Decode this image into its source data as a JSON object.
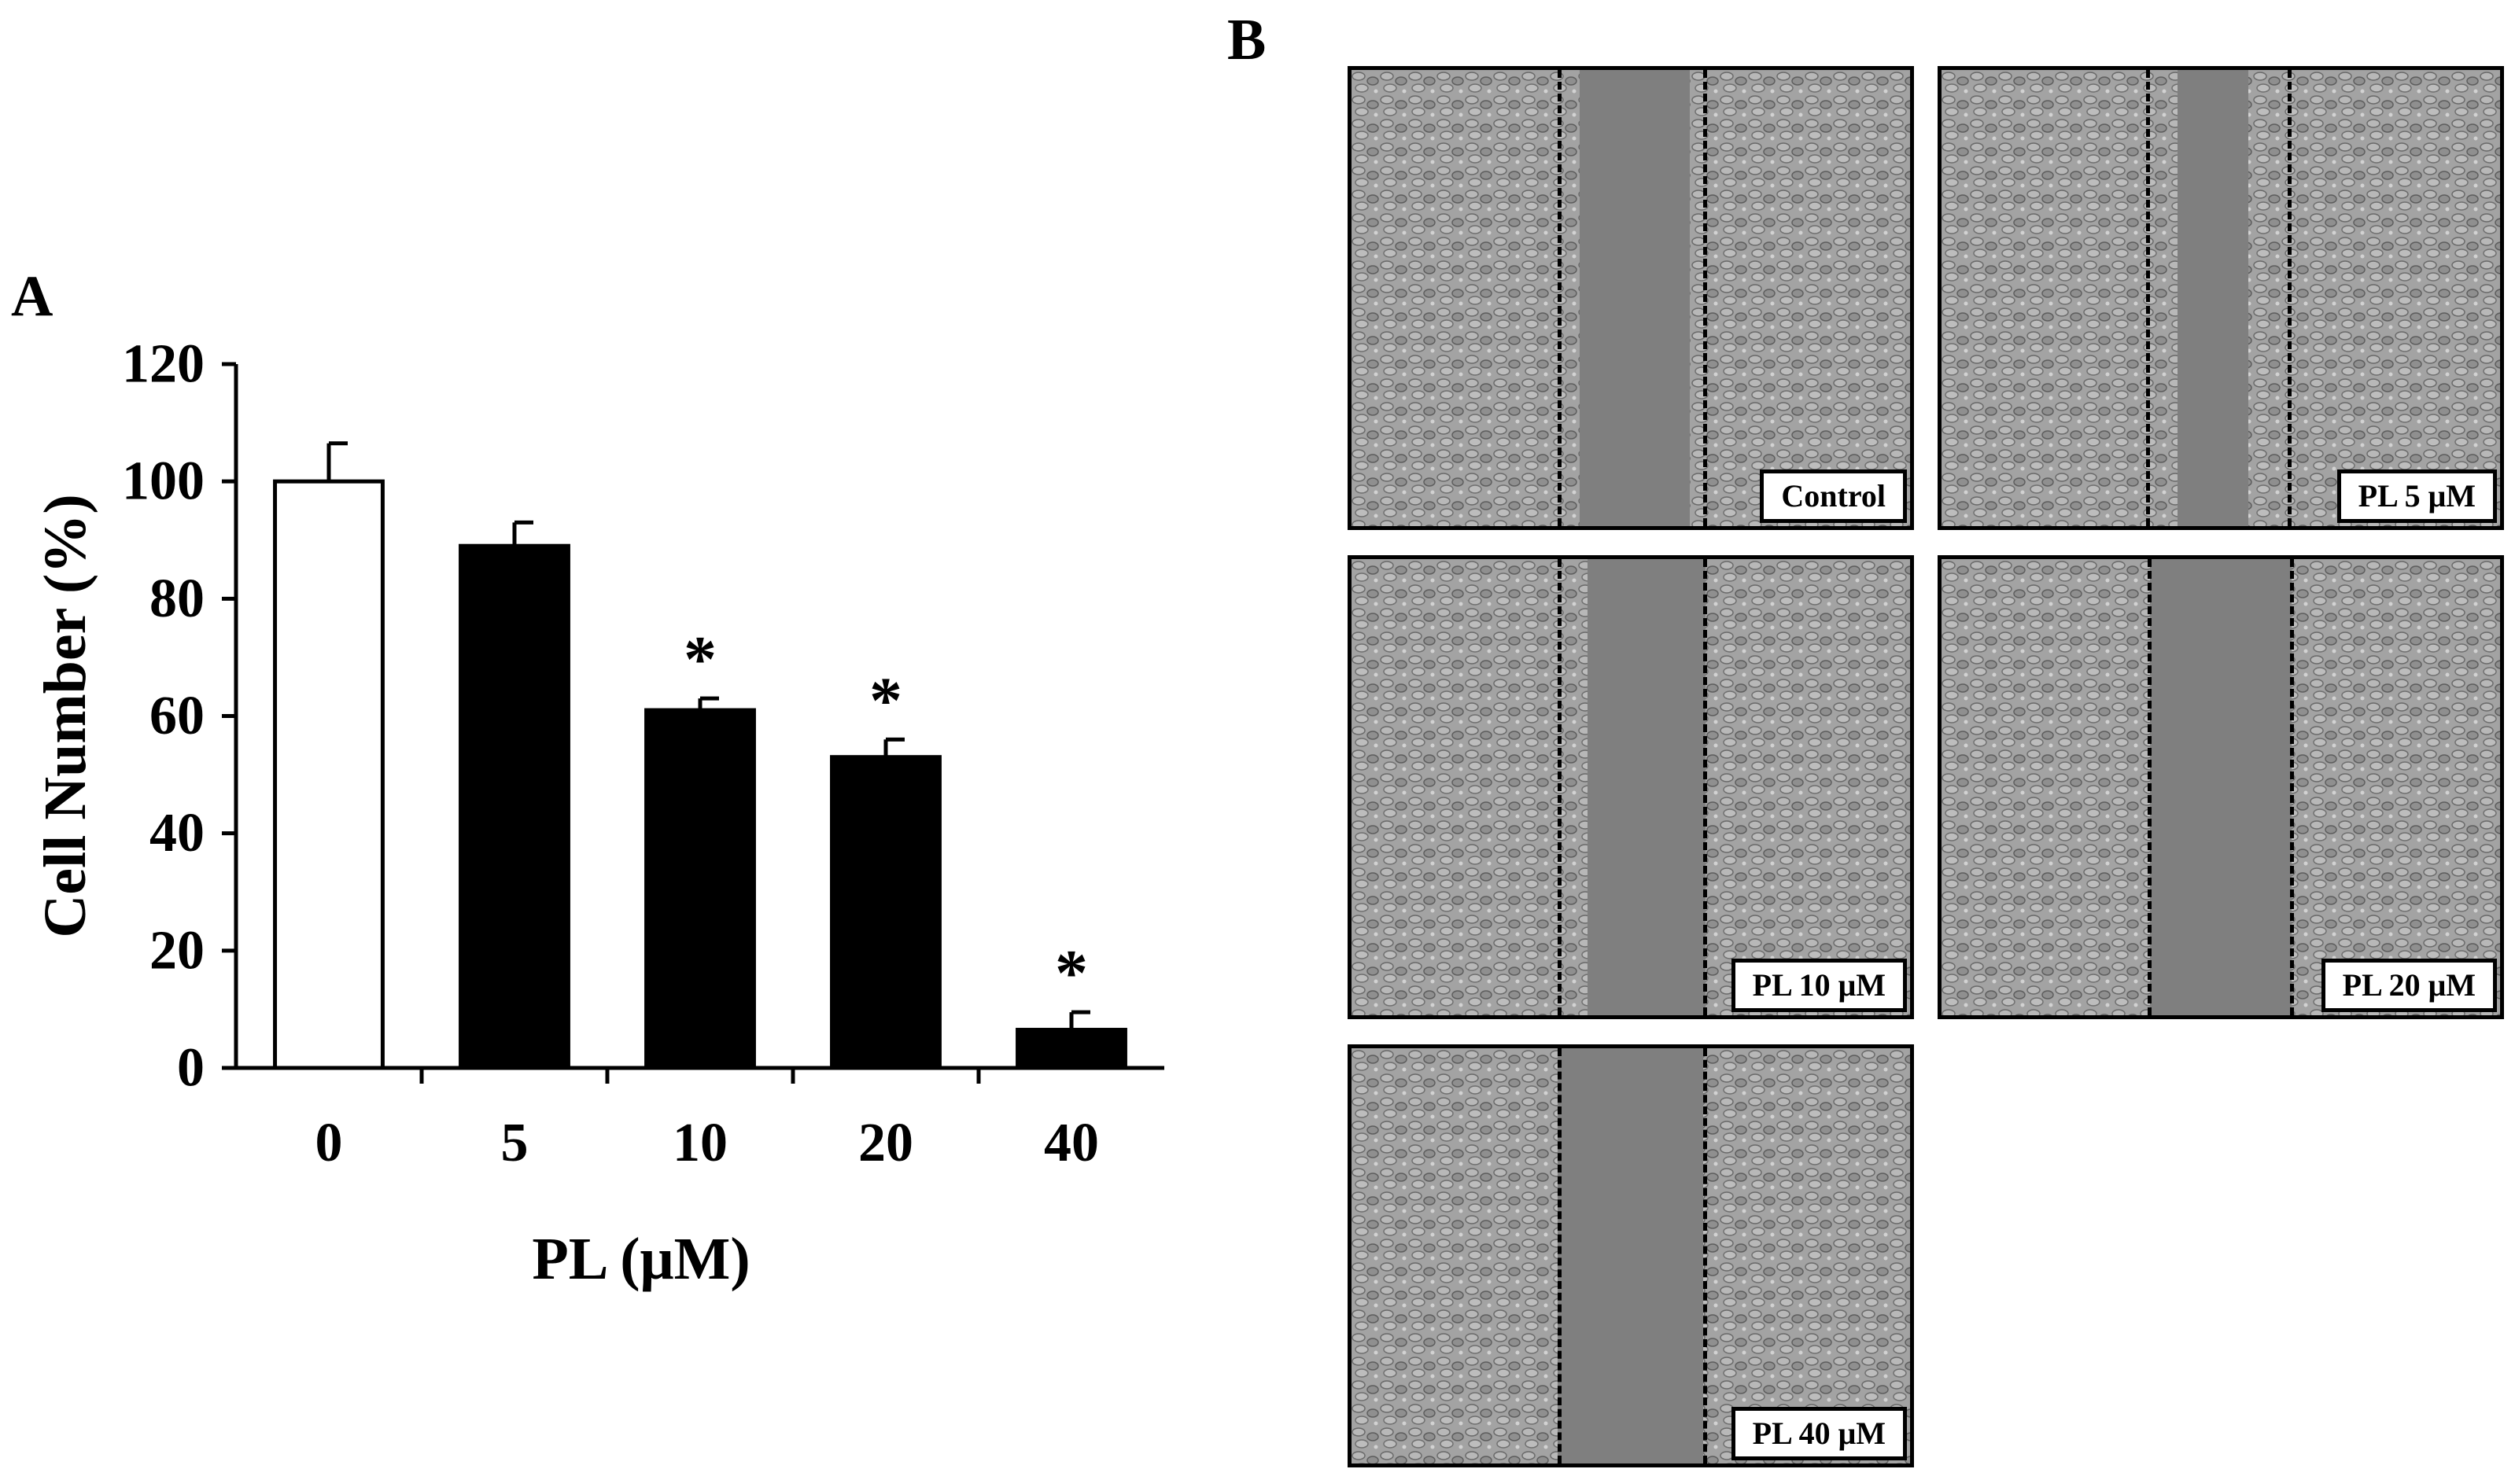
{
  "panels": {
    "a_letter": "A",
    "b_letter": "B"
  },
  "chart_data": {
    "type": "bar",
    "categories": [
      "0",
      "5",
      "10",
      "20",
      "40"
    ],
    "values": [
      100,
      89,
      61,
      53,
      6.5
    ],
    "errors": [
      6.5,
      4,
      2,
      3,
      3
    ],
    "significance": [
      "",
      "",
      "*",
      "*",
      "*"
    ],
    "bar_colors": [
      "#ffffff",
      "#000000",
      "#000000",
      "#000000",
      "#000000"
    ],
    "ylabel": "Cell Number (%)",
    "xlabel": "PL (μM)",
    "ylim": [
      0,
      120
    ],
    "yticks": [
      0,
      20,
      40,
      60,
      80,
      100,
      120
    ],
    "grid": false
  },
  "micrographs": [
    {
      "label": "Control"
    },
    {
      "label": "PL 5 μM"
    },
    {
      "label": "PL 10 μM"
    },
    {
      "label": "PL 20 μM"
    },
    {
      "label": "PL 40 μM"
    }
  ]
}
